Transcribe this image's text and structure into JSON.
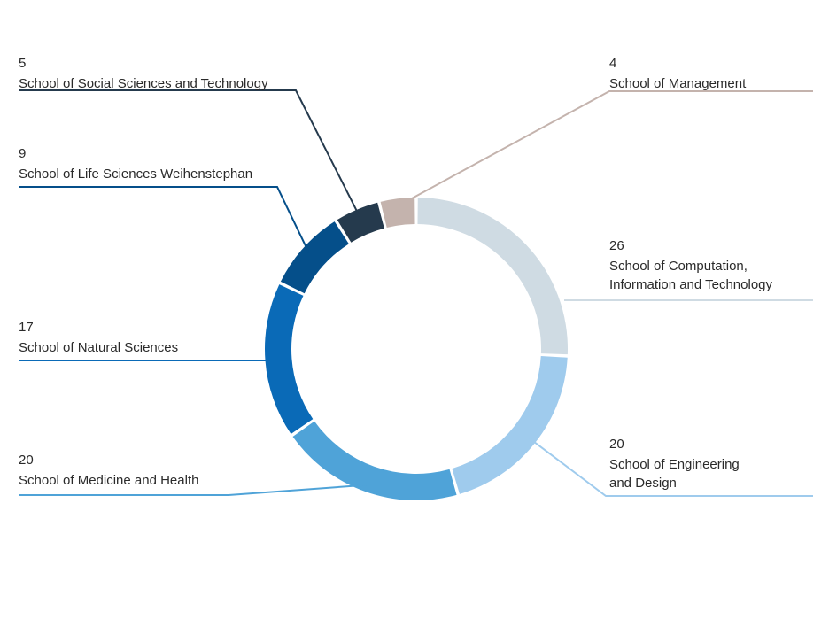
{
  "chart_data": {
    "type": "pie",
    "donut": true,
    "categories": [
      "School of Computation, Information and Technology",
      "School of Engineering and Design",
      "School of Medicine and Health",
      "School of Natural Sciences",
      "School of Life Sciences Weihenstephan",
      "School of Social Sciences and Technology",
      "School of Management"
    ],
    "values": [
      26,
      20,
      20,
      17,
      9,
      5,
      4
    ],
    "colors": [
      "#cfdbe3",
      "#9fcbed",
      "#4fa3d8",
      "#0a6ab7",
      "#054f8a",
      "#253a4d",
      "#c4b3ad"
    ],
    "labels": [
      {
        "value": "26",
        "lines": [
          "School of Computation,",
          "Information and Technology"
        ]
      },
      {
        "value": "20",
        "lines": [
          "School of Engineering",
          "and Design"
        ]
      },
      {
        "value": "20",
        "lines": [
          "School of Medicine and Health"
        ]
      },
      {
        "value": "17",
        "lines": [
          "School of Natural Sciences"
        ]
      },
      {
        "value": "9",
        "lines": [
          "School of Life Sciences Weihenstephan"
        ]
      },
      {
        "value": "5",
        "lines": [
          "School of Social Sciences and Technology"
        ]
      },
      {
        "value": "4",
        "lines": [
          "School of Management"
        ]
      }
    ],
    "title": ""
  }
}
